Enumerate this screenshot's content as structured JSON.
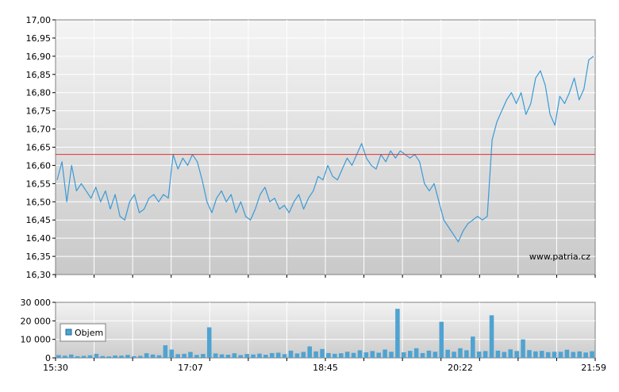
{
  "chart_data": [
    {
      "type": "line",
      "name": "price",
      "ylim": [
        16.3,
        17.0
      ],
      "y_ticks": [
        "17,00",
        "16,95",
        "16,90",
        "16,85",
        "16,80",
        "16,75",
        "16,70",
        "16,65",
        "16,60",
        "16,55",
        "16,50",
        "16,45",
        "16,40",
        "16,35",
        "16,30"
      ],
      "reference_line": 16.63,
      "watermark": "www.patria.cz",
      "grid": true,
      "series": [
        {
          "values": [
            16.56,
            16.61,
            16.5,
            16.6,
            16.53,
            16.55,
            16.53,
            16.51,
            16.54,
            16.5,
            16.53,
            16.48,
            16.52,
            16.46,
            16.45,
            16.5,
            16.52,
            16.47,
            16.48,
            16.51,
            16.52,
            16.5,
            16.52,
            16.51,
            16.63,
            16.59,
            16.62,
            16.6,
            16.63,
            16.61,
            16.56,
            16.5,
            16.47,
            16.51,
            16.53,
            16.5,
            16.52,
            16.47,
            16.5,
            16.46,
            16.45,
            16.48,
            16.52,
            16.54,
            16.5,
            16.51,
            16.48,
            16.49,
            16.47,
            16.5,
            16.52,
            16.48,
            16.51,
            16.53,
            16.57,
            16.56,
            16.6,
            16.57,
            16.56,
            16.59,
            16.62,
            16.6,
            16.63,
            16.66,
            16.62,
            16.6,
            16.59,
            16.63,
            16.61,
            16.64,
            16.62,
            16.64,
            16.63,
            16.62,
            16.63,
            16.61,
            16.55,
            16.53,
            16.55,
            16.5,
            16.45,
            16.43,
            16.41,
            16.39,
            16.42,
            16.44,
            16.45,
            16.46,
            16.45,
            16.46,
            16.67,
            16.72,
            16.75,
            16.78,
            16.8,
            16.77,
            16.8,
            16.74,
            16.77,
            16.84,
            16.86,
            16.82,
            16.74,
            16.71,
            16.79,
            16.77,
            16.8,
            16.84,
            16.78,
            16.81,
            16.89,
            16.9
          ]
        }
      ]
    },
    {
      "type": "bar",
      "name": "volume",
      "ylim": [
        0,
        30000
      ],
      "y_ticks": [
        "30 000",
        "20 000",
        "10 000",
        "0"
      ],
      "x_ticks": [
        "15:30",
        "17:07",
        "18:45",
        "20:22",
        "21:59"
      ],
      "legend": "Objem",
      "legend_position": "left",
      "grid": true,
      "series": [
        {
          "name": "Objem",
          "values": [
            1500,
            1200,
            1800,
            900,
            1100,
            1400,
            2200,
            1000,
            800,
            1300,
            1200,
            1600,
            900,
            1100,
            2500,
            1800,
            1400,
            6800,
            4500,
            2000,
            2200,
            3200,
            1600,
            2100,
            16500,
            2400,
            1900,
            1700,
            2500,
            1500,
            2100,
            1800,
            2300,
            1700,
            2600,
            2800,
            2000,
            3900,
            2400,
            3200,
            6200,
            3500,
            4800,
            2600,
            2200,
            2500,
            3300,
            2700,
            4100,
            3000,
            3700,
            2800,
            4500,
            3300,
            26500,
            3000,
            3800,
            5200,
            2600,
            3900,
            3300,
            19500,
            4400,
            3300,
            5200,
            4100,
            11500,
            3400,
            3700,
            23000,
            3900,
            3200,
            4600,
            3700,
            10000,
            4200,
            3500,
            3800,
            3100,
            3300,
            3300,
            4400,
            3200,
            3500,
            2900,
            3600
          ]
        }
      ]
    }
  ]
}
